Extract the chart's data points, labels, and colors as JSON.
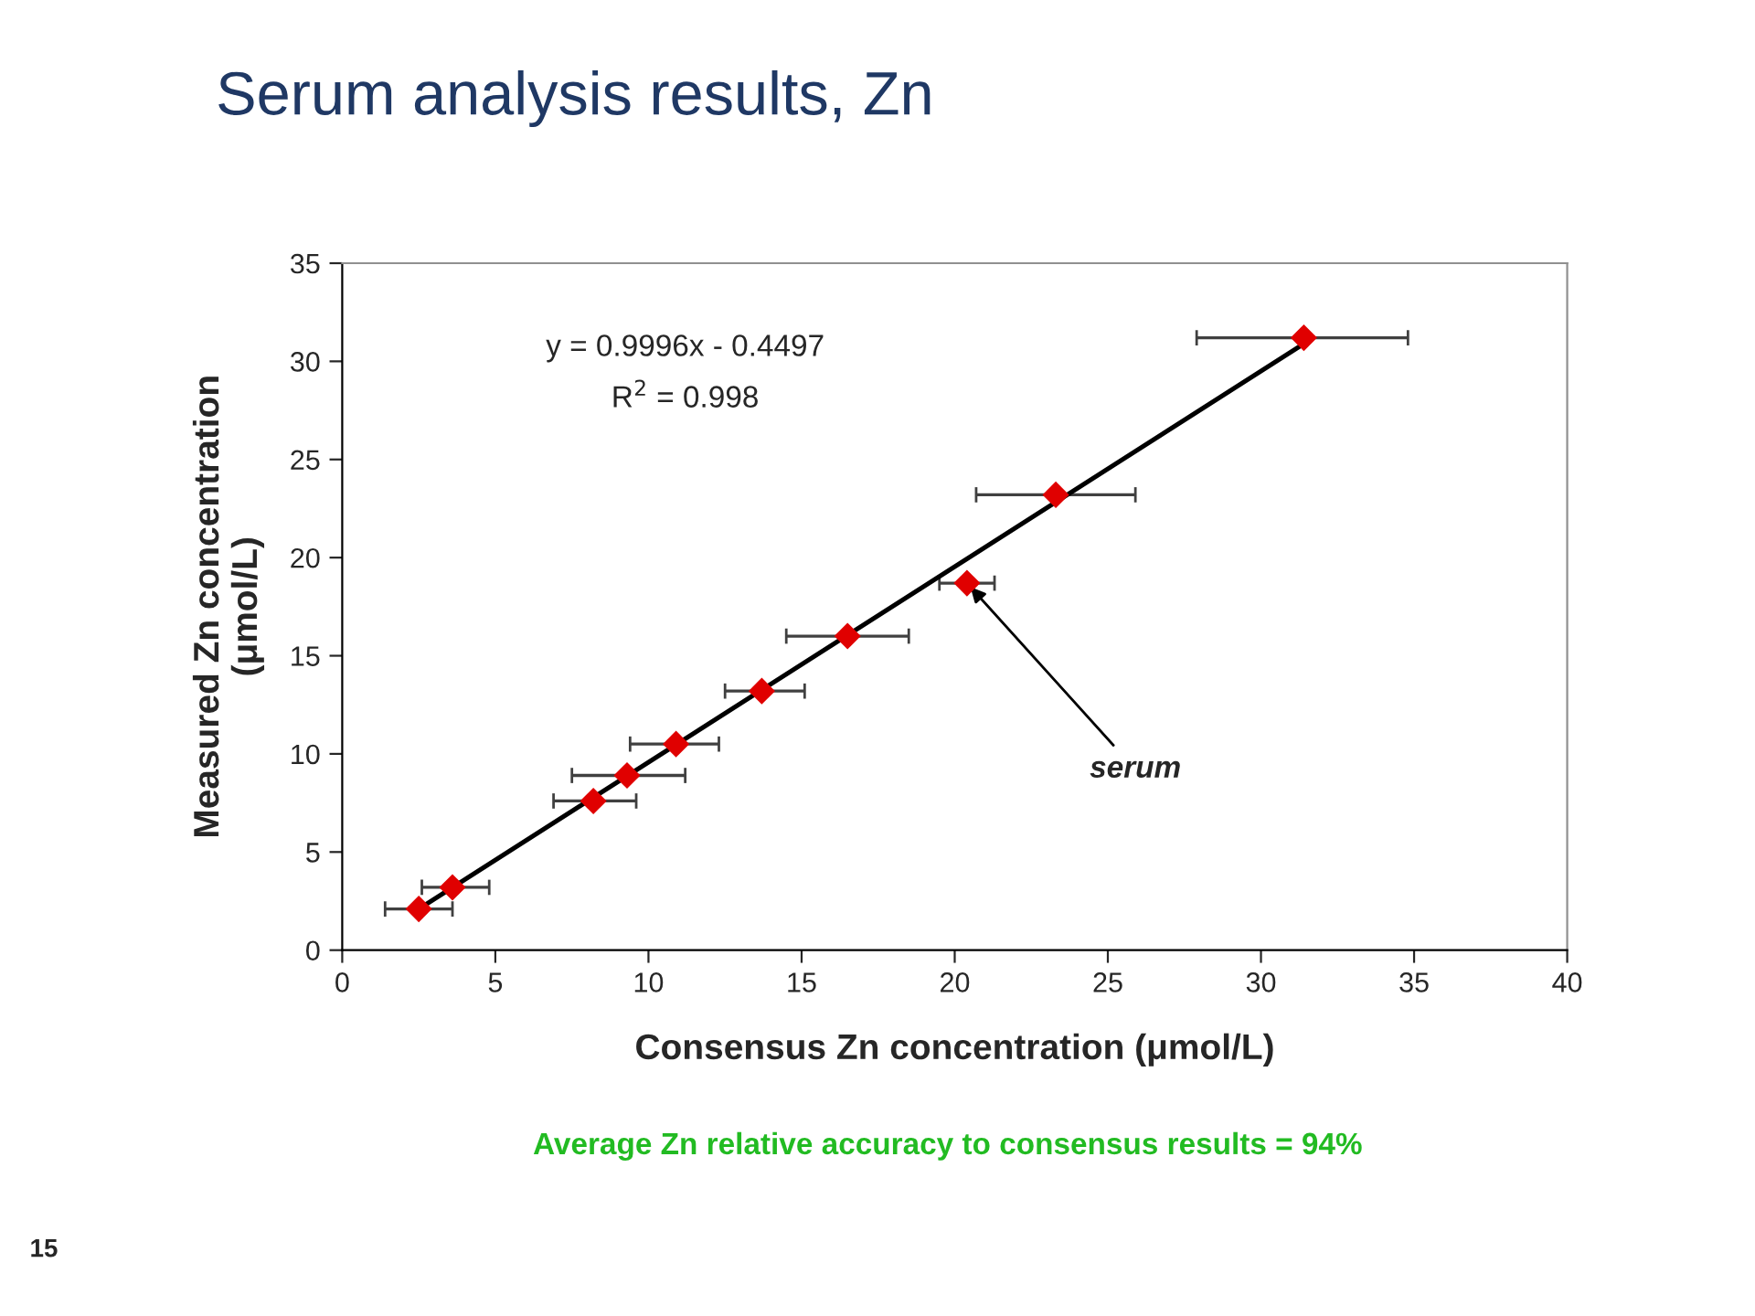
{
  "chart_data": {
    "type": "scatter",
    "title": "Serum analysis results, Zn",
    "xlabel": "Consensus Zn concentration (μmol/L)",
    "ylabel": "Measured Zn concentration\n(μmol/L)",
    "xlim": [
      0,
      40
    ],
    "xticks": [
      0,
      5,
      10,
      15,
      20,
      25,
      30,
      35,
      40
    ],
    "ylim": [
      0,
      35
    ],
    "yticks": [
      0,
      5,
      10,
      15,
      20,
      25,
      30,
      35
    ],
    "grid": false,
    "series": [
      {
        "color": "#e00000",
        "marker": "diamond",
        "x": [
          2.5,
          3.6,
          8.2,
          9.3,
          10.9,
          13.7,
          16.5,
          20.4,
          23.3,
          31.4
        ],
        "values": [
          2.1,
          3.2,
          7.6,
          8.9,
          10.5,
          13.2,
          16.0,
          18.7,
          23.2,
          31.2
        ],
        "xerrors": [
          [
            1.4,
            3.6
          ],
          [
            2.6,
            4.8
          ],
          [
            6.9,
            9.6
          ],
          [
            7.5,
            11.2
          ],
          [
            9.4,
            12.3
          ],
          [
            12.5,
            15.1
          ],
          [
            14.5,
            18.5
          ],
          [
            19.5,
            21.3
          ],
          [
            20.7,
            25.9
          ],
          [
            27.9,
            34.8
          ]
        ]
      },
      {
        "type": "line",
        "color": "#000000",
        "marker": "none",
        "line_style": "solid",
        "x": [
          2.5,
          31.4
        ],
        "values": [
          2.1,
          30.9
        ]
      }
    ],
    "annotations": [
      "y = 0.9996x - 0.4497",
      "R$^{2}$ = 0.998",
      {
        "text": "serum",
        "x": 20.4,
        "y": 18.7
      },
      "Average Zn relative accuracy to consensus results = 94%",
      "15"
    ]
  }
}
